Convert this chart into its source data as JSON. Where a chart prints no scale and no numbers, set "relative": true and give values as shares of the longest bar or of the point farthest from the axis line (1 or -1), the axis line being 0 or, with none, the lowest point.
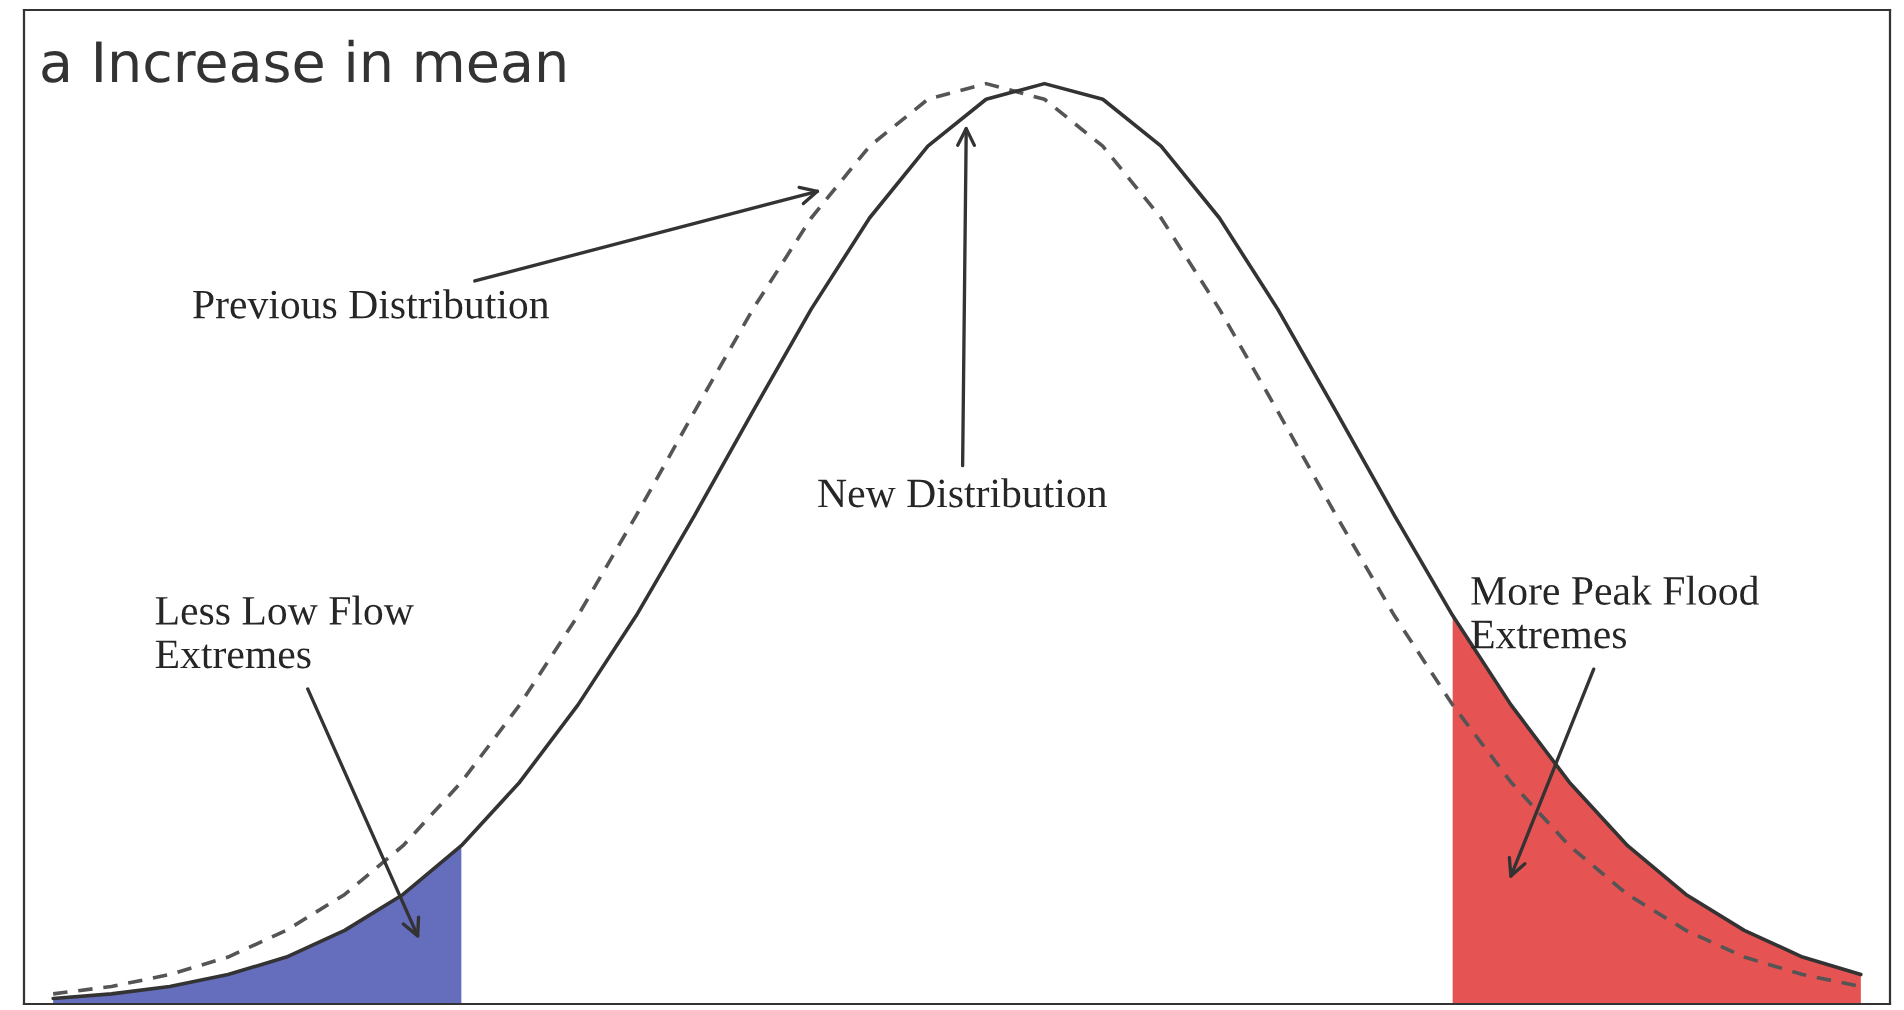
{
  "chart_data": {
    "type": "line",
    "relative": true,
    "title": "a Increase in mean",
    "categories": [
      null,
      null,
      null,
      null,
      null,
      null,
      null,
      null,
      null,
      null,
      null,
      null,
      null,
      null,
      null,
      null,
      null,
      null,
      null,
      null,
      null,
      null,
      null,
      null,
      null,
      null,
      null,
      null,
      null,
      null,
      null,
      null
    ],
    "series": [
      {
        "color": "#555555",
        "line_style": "dashed",
        "values": [
          0.011,
          0.019,
          0.032,
          0.051,
          0.08,
          0.119,
          0.172,
          0.241,
          0.325,
          0.422,
          0.531,
          0.644,
          0.755,
          0.854,
          0.932,
          0.983,
          1,
          0.983,
          0.932,
          0.854,
          0.755,
          0.644,
          0.531,
          0.422,
          0.325,
          0.241,
          0.172,
          0.119,
          0.08,
          0.051,
          0.032,
          0.019
        ]
      },
      {
        "color": "#333333",
        "line_style": "solid",
        "values": [
          0.006,
          0.011,
          0.019,
          0.032,
          0.051,
          0.08,
          0.119,
          0.172,
          0.241,
          0.325,
          0.422,
          0.531,
          0.644,
          0.755,
          0.854,
          0.932,
          0.983,
          1,
          0.983,
          0.932,
          0.854,
          0.755,
          0.644,
          0.531,
          0.422,
          0.325,
          0.241,
          0.172,
          0.119,
          0.08,
          0.051,
          0.032
        ]
      },
      {
        "type": "area",
        "color": "#4a55b0",
        "values": [
          0.006,
          0.011,
          0.019,
          0.032,
          0.051,
          0.08,
          0.119,
          0.172,
          null,
          null,
          null,
          null,
          null,
          null,
          null,
          null,
          null,
          null,
          null,
          null,
          null,
          null,
          null,
          null,
          null,
          null,
          null,
          null,
          null,
          null,
          null,
          null
        ]
      },
      {
        "type": "area",
        "color": "#e03535",
        "values": [
          null,
          null,
          null,
          null,
          null,
          null,
          null,
          null,
          null,
          null,
          null,
          null,
          null,
          null,
          null,
          null,
          null,
          null,
          null,
          null,
          null,
          null,
          null,
          null,
          0.422,
          0.325,
          0.241,
          0.172,
          0.119,
          0.08,
          0.051,
          0.032
        ]
      }
    ],
    "annotations": [
      "Previous Distribution",
      "New Distribution",
      "Less Low Flow\nExtremes",
      "More Peak Flood\nExtremes"
    ]
  }
}
